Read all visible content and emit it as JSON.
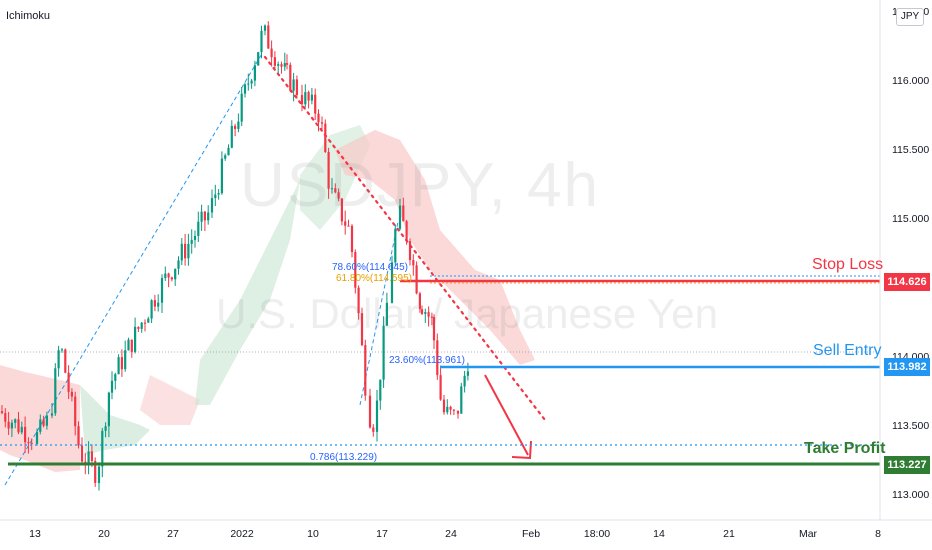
{
  "indicator": "Ichimoku",
  "currency": "JPY",
  "watermark": {
    "symbol": "USDJPY, 4h",
    "name": "U.S. Dollar / Japanese Yen"
  },
  "levels": {
    "stop_loss": {
      "label": "Stop Loss",
      "price": "114.626",
      "value": 114.626,
      "color": "#f23645"
    },
    "sell_entry": {
      "label": "Sell Entry",
      "price": "113.982",
      "value": 113.982,
      "color": "#2196f3"
    },
    "take_profit": {
      "label": "Take Profit",
      "price": "113.227",
      "value": 113.227,
      "color": "#2e7d32"
    }
  },
  "fib_labels": {
    "fib_786_top": "78.60%(114.645)",
    "fib_618": "61.80%(114.595)",
    "fib_236": "23.60%(113.961)",
    "fib_786_bottom": "0.786(113.229)"
  },
  "colors": {
    "up": "#089981",
    "down": "#f23645",
    "candle_up": "#26a69a",
    "candle_down": "#ef5350",
    "cloud_red": "#f8c9c8",
    "cloud_green": "#cde7d4",
    "accent": "#2196f3"
  },
  "chart_data": {
    "type": "candlestick",
    "symbol": "USDJPY",
    "timeframe": "4h",
    "ylim": [
      112.85,
      116.65
    ],
    "y_ticks": [
      "113.000",
      "113.500",
      "114.000",
      "114.500",
      "115.000",
      "115.500",
      "116.000",
      "116.500"
    ],
    "y_tick_values": [
      113.0,
      113.5,
      114.0,
      114.5,
      115.0,
      115.5,
      116.0,
      116.5
    ],
    "x_ticks": [
      "13",
      "20",
      "27",
      "2022",
      "10",
      "17",
      "24",
      "Feb",
      "18:00",
      "14",
      "21",
      "Mar",
      "8"
    ],
    "price_path": {
      "x": [
        "Dec 9",
        "Dec 13",
        "Dec 16",
        "Dec 17",
        "Dec 19",
        "Dec 20",
        "Dec 21",
        "Dec 27",
        "Dec 30",
        "Jan 4",
        "Jan 5",
        "Jan 7",
        "Jan 10",
        "Jan 11",
        "Jan 13",
        "Jan 14",
        "Jan 16",
        "Jan 17",
        "Jan 18",
        "Jan 19",
        "Jan 20",
        "Jan 21",
        "Jan 23",
        "Jan 24",
        "Jan 25",
        "Jan 26"
      ],
      "y": [
        113.6,
        113.4,
        113.55,
        114.1,
        113.3,
        113.15,
        113.8,
        114.5,
        115.05,
        116.35,
        116.05,
        115.9,
        115.75,
        115.2,
        114.9,
        114.2,
        113.6,
        113.5,
        114.6,
        115.05,
        114.85,
        114.4,
        114.25,
        113.6,
        113.55,
        114.05
      ]
    },
    "swing_high": 116.35,
    "swing_low": 113.15,
    "fib_levels": [
      {
        "ratio": "78.60%",
        "value": 114.645
      },
      {
        "ratio": "61.80%",
        "value": 114.595
      },
      {
        "ratio": "23.60%",
        "value": 113.961
      },
      {
        "ratio": "0.786",
        "value": 113.229
      }
    ],
    "annotations": [
      "Stop Loss",
      "Sell Entry",
      "Take Profit"
    ]
  }
}
